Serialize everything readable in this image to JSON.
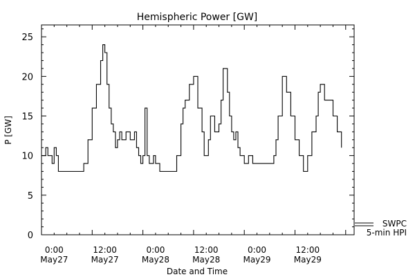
{
  "chart_data": {
    "type": "line",
    "title": "Hemispheric Power [GW]",
    "xlabel": "Date and Time",
    "ylabel": "P [GW]",
    "xlim": [
      "2018-05-26 21:00",
      "2018-05-29 23:00"
    ],
    "ylim": [
      0,
      26.5
    ],
    "y_ticks": [
      0,
      5,
      10,
      15,
      20,
      25
    ],
    "x_ticks": [
      {
        "x": "2018-05-27 00:00",
        "label": [
          "0:00",
          "May27"
        ]
      },
      {
        "x": "2018-05-27 12:00",
        "label": [
          "12:00",
          "May27"
        ]
      },
      {
        "x": "2018-05-28 00:00",
        "label": [
          "0:00",
          "May28"
        ]
      },
      {
        "x": "2018-05-28 12:00",
        "label": [
          "12:00",
          "May28"
        ]
      },
      {
        "x": "2018-05-29 00:00",
        "label": [
          "0:00",
          "May29"
        ]
      },
      {
        "x": "2018-05-29 12:00",
        "label": [
          "12:00",
          "May29"
        ]
      }
    ],
    "legend": {
      "placement": "bottom-right, outside plot",
      "entries": [
        "SWPC",
        "5-min HPI"
      ]
    },
    "series": [
      {
        "name": "SWPC",
        "color": "#000000",
        "style": "step",
        "x": [
          "2018-05-26 21:00",
          "2018-05-26 22:00",
          "2018-05-26 22:30",
          "2018-05-26 23:00",
          "2018-05-26 23:30",
          "2018-05-27 00:00",
          "2018-05-27 00:30",
          "2018-05-27 01:00",
          "2018-05-27 02:00",
          "2018-05-27 03:00",
          "2018-05-27 04:00",
          "2018-05-27 05:00",
          "2018-05-27 06:00",
          "2018-05-27 07:00",
          "2018-05-27 08:00",
          "2018-05-27 09:00",
          "2018-05-27 10:00",
          "2018-05-27 11:00",
          "2018-05-27 11:30",
          "2018-05-27 12:00",
          "2018-05-27 12:30",
          "2018-05-27 13:00",
          "2018-05-27 13:30",
          "2018-05-27 14:00",
          "2018-05-27 14:30",
          "2018-05-27 15:00",
          "2018-05-27 15:30",
          "2018-05-27 16:00",
          "2018-05-27 17:00",
          "2018-05-27 18:00",
          "2018-05-27 19:00",
          "2018-05-27 19:30",
          "2018-05-27 20:00",
          "2018-05-27 20:30",
          "2018-05-27 21:00",
          "2018-05-27 21:30",
          "2018-05-27 22:00",
          "2018-05-27 22:30",
          "2018-05-27 23:00",
          "2018-05-27 23:30",
          "2018-05-28 00:00",
          "2018-05-28 01:00",
          "2018-05-28 02:00",
          "2018-05-28 03:00",
          "2018-05-28 04:00",
          "2018-05-28 05:00",
          "2018-05-28 06:00",
          "2018-05-28 06:30",
          "2018-05-28 07:00",
          "2018-05-28 08:00",
          "2018-05-28 09:00",
          "2018-05-28 10:00",
          "2018-05-28 11:00",
          "2018-05-28 11:30",
          "2018-05-28 12:00",
          "2018-05-28 12:30",
          "2018-05-28 13:00",
          "2018-05-28 14:00",
          "2018-05-28 15:00",
          "2018-05-28 15:30",
          "2018-05-28 16:00",
          "2018-05-28 17:00",
          "2018-05-28 17:30",
          "2018-05-28 18:00",
          "2018-05-28 18:30",
          "2018-05-28 19:00",
          "2018-05-28 19:30",
          "2018-05-28 20:00",
          "2018-05-28 21:00",
          "2018-05-28 22:00",
          "2018-05-28 23:00",
          "2018-05-29 00:00",
          "2018-05-29 01:00",
          "2018-05-29 02:00",
          "2018-05-29 03:00",
          "2018-05-29 03:30",
          "2018-05-29 04:00",
          "2018-05-29 04:30",
          "2018-05-29 05:00",
          "2018-05-29 06:00",
          "2018-05-29 07:00",
          "2018-05-29 08:00",
          "2018-05-29 09:00",
          "2018-05-29 10:00",
          "2018-05-29 11:00",
          "2018-05-29 12:00",
          "2018-05-29 13:00",
          "2018-05-29 14:00",
          "2018-05-29 14:30",
          "2018-05-29 15:00",
          "2018-05-29 16:00",
          "2018-05-29 17:00",
          "2018-05-29 18:00",
          "2018-05-29 19:00",
          "2018-05-29 20:00"
        ],
        "y": [
          10,
          11,
          10,
          10,
          9,
          11,
          10,
          8,
          8,
          8,
          8,
          8,
          8,
          9,
          12,
          16,
          19,
          22,
          24,
          23,
          19,
          16,
          14,
          13,
          11,
          12,
          13,
          12,
          13,
          12,
          13,
          11,
          10,
          9,
          10,
          16,
          10,
          9,
          9,
          10,
          9,
          8,
          8,
          8,
          8,
          10,
          14,
          16,
          17,
          19,
          20,
          16,
          13,
          10,
          10,
          12,
          15,
          13,
          14,
          17,
          21,
          18,
          15,
          13,
          12,
          13,
          11,
          10,
          9,
          10,
          9,
          9,
          9,
          9,
          9,
          9,
          10,
          12,
          15,
          20,
          18,
          15,
          12,
          10,
          8,
          10,
          13,
          15,
          18,
          19,
          17,
          17,
          15,
          13,
          11
        ]
      }
    ]
  }
}
